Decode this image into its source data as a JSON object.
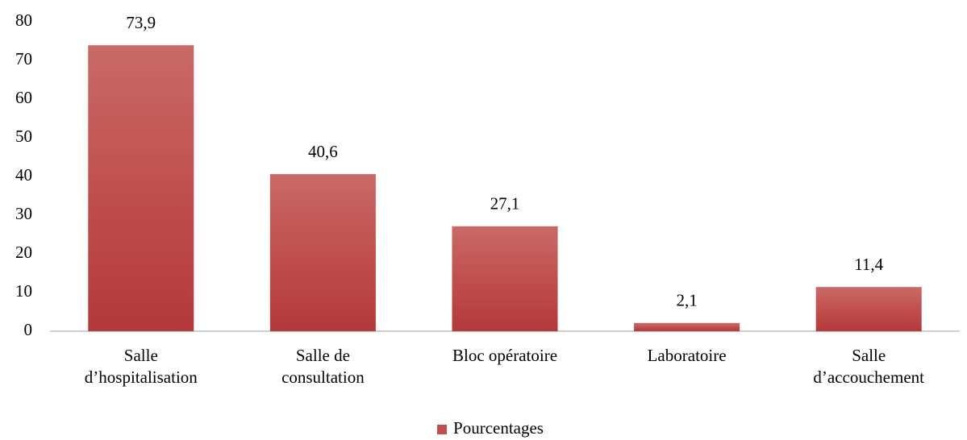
{
  "chart_data": {
    "type": "bar",
    "categories": [
      [
        "Salle",
        "d’hospitalisation"
      ],
      [
        "Salle de",
        "consultation"
      ],
      [
        "Bloc opératoire"
      ],
      [
        "Laboratoire"
      ],
      [
        "Salle",
        "d’accouchement"
      ]
    ],
    "series": [
      {
        "name": "Pourcentages",
        "color": "#c0504d",
        "values": [
          73.9,
          40.6,
          27.1,
          2.1,
          11.4
        ],
        "value_labels": [
          "73,9",
          "40,6",
          "27,1",
          "2,1",
          "11,4"
        ]
      }
    ],
    "ylim": [
      0,
      80
    ],
    "yticks": [
      0,
      10,
      20,
      30,
      40,
      50,
      60,
      70,
      80
    ],
    "grid": false,
    "legend": "bottom"
  }
}
